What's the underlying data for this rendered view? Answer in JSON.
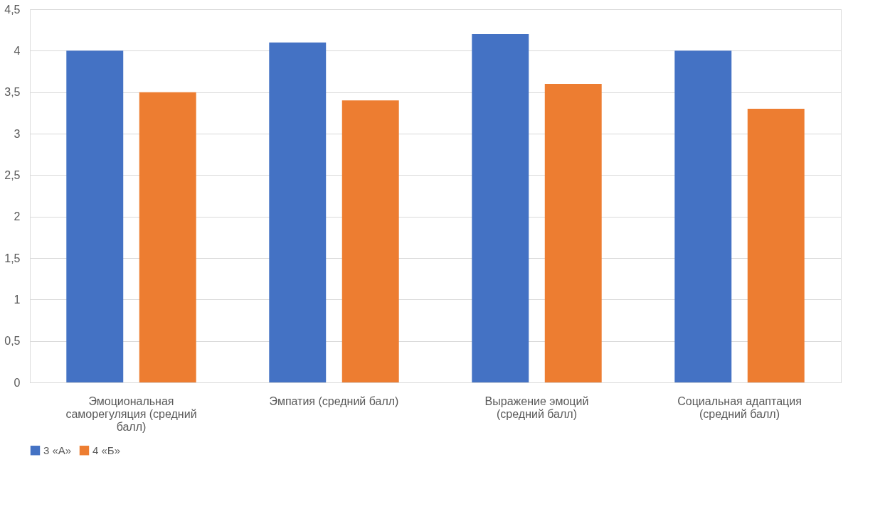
{
  "chart_data": {
    "type": "bar",
    "categories": [
      "Эмоциональная саморегуляция (средний балл)",
      "Эмпатия (средний балл)",
      "Выражение эмоций (средний балл)",
      "Социальная адаптация (средний балл)"
    ],
    "series": [
      {
        "name": "3 «А»",
        "color": "#4472c4",
        "values": [
          4.0,
          4.1,
          4.2,
          4.0
        ]
      },
      {
        "name": "4 «Б»",
        "color": "#ed7d31",
        "values": [
          3.5,
          3.4,
          3.6,
          3.3
        ]
      }
    ],
    "ylim": [
      0,
      4.5
    ],
    "yticks": [
      0,
      {
        "value": 0.5,
        "label": "0,5"
      },
      1,
      {
        "value": 1.5,
        "label": "1,5"
      },
      2,
      {
        "value": 2.5,
        "label": "2,5"
      },
      3,
      {
        "value": 3.5,
        "label": "3,5"
      },
      4,
      {
        "value": 4.5,
        "label": "4,5"
      }
    ],
    "grid": "y",
    "legend": "bottom"
  }
}
